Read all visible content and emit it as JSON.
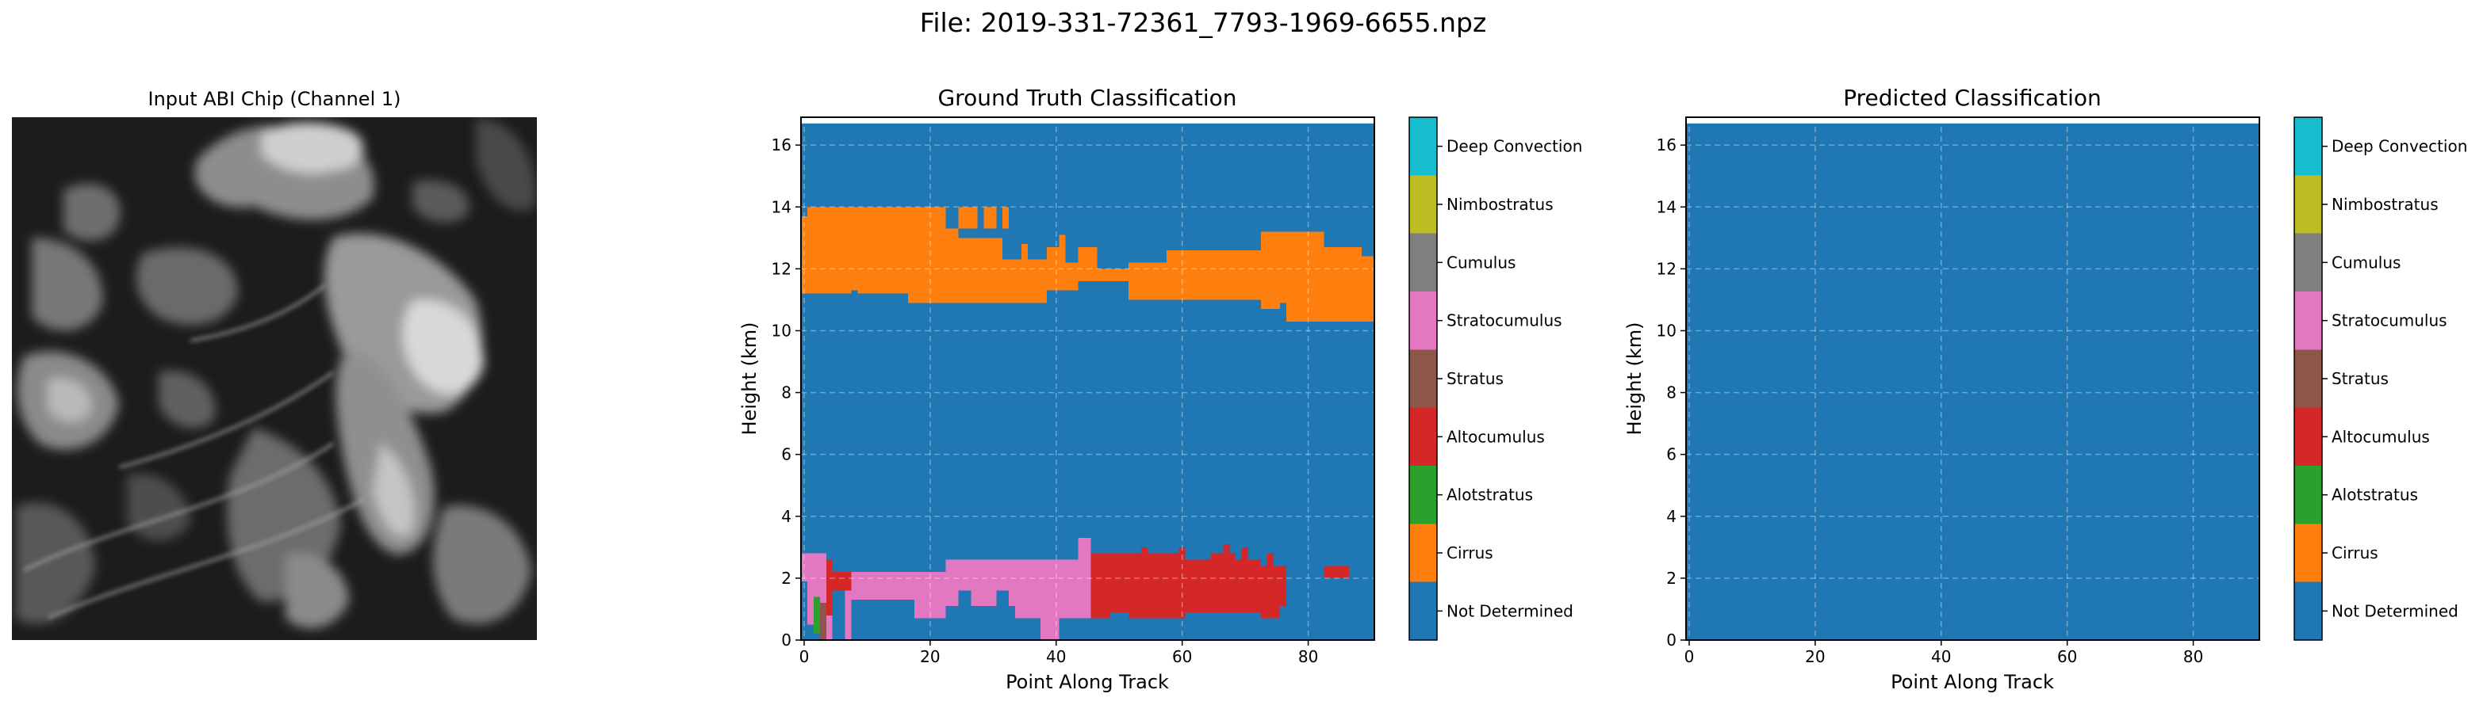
{
  "figure": {
    "suptitle": "File: 2019-331-72361_7793-1969-6655.npz"
  },
  "input_image": {
    "title": "Input ABI Chip (Channel 1)"
  },
  "chart_data": [
    {
      "type": "heatmap",
      "title": "Ground Truth Classification",
      "xlabel": "Point Along Track",
      "ylabel": "Height (km)",
      "xlim": [
        -0.5,
        90.5
      ],
      "ylim": [
        0,
        16.9
      ],
      "xticks": [
        0,
        20,
        40,
        60,
        80
      ],
      "yticks": [
        0,
        2,
        4,
        6,
        8,
        10,
        12,
        14,
        16
      ],
      "grid": true,
      "grid_style": "dashed",
      "background_class": "Not Determined",
      "top_strip": {
        "y_range": [
          16.7,
          16.9
        ],
        "color": "#ffffff"
      },
      "layers": [
        {
          "name": "upper layer",
          "class": "Cirrus",
          "segments": [
            [
              -0.5,
              7.5,
              11.2,
              13.7
            ],
            [
              7.5,
              16.5,
              11.2,
              13.3
            ],
            [
              16.5,
              24.5,
              10.9,
              13.3
            ],
            [
              24.5,
              31.5,
              10.9,
              13.0
            ],
            [
              31.5,
              38.5,
              10.9,
              12.3
            ],
            [
              38.5,
              41.5,
              11.3,
              12.7
            ],
            [
              41.5,
              43.5,
              11.3,
              12.2
            ],
            [
              43.5,
              46.5,
              11.6,
              12.7
            ],
            [
              46.5,
              51.5,
              11.6,
              12.0
            ],
            [
              51.5,
              57.5,
              11.0,
              12.2
            ],
            [
              57.5,
              72.5,
              11.0,
              12.6
            ],
            [
              72.5,
              76.5,
              10.7,
              13.2
            ],
            [
              76.5,
              82.5,
              10.3,
              13.2
            ],
            [
              82.5,
              88.5,
              10.3,
              12.7
            ],
            [
              88.5,
              90.5,
              10.3,
              12.4
            ],
            [
              0.5,
              22.5,
              13.2,
              14.0
            ],
            [
              24.5,
              27.5,
              13.3,
              14.0
            ],
            [
              28.5,
              30.5,
              13.3,
              14.0
            ],
            [
              31.5,
              32.5,
              13.3,
              14.0
            ],
            [
              34.5,
              35.5,
              12.3,
              12.8
            ],
            [
              40.5,
              41.5,
              12.6,
              13.1
            ]
          ],
          "holes": [
            [
              7.5,
              8.5,
              10.9,
              11.3
            ],
            [
              74.5,
              75.5,
              10.3,
              10.7
            ],
            [
              75.5,
              76.5,
              10.5,
              10.9
            ]
          ]
        },
        {
          "name": "lower layer",
          "class": "Stratocumulus",
          "segments": [
            [
              -0.5,
              3.5,
              0.5,
              2.8
            ],
            [
              3.5,
              7.5,
              0.0,
              2.2
            ],
            [
              7.5,
              15.5,
              1.3,
              2.2
            ],
            [
              15.5,
              22.5,
              0.7,
              2.2
            ],
            [
              22.5,
              28.5,
              1.1,
              2.6
            ],
            [
              28.5,
              33.5,
              1.1,
              2.6
            ],
            [
              33.5,
              37.5,
              0.7,
              2.6
            ],
            [
              37.5,
              40.5,
              0.0,
              2.6
            ],
            [
              40.5,
              44.5,
              0.7,
              2.6
            ],
            [
              43.5,
              45.5,
              0.7,
              3.3
            ]
          ],
          "holes": [
            [
              -0.5,
              0.5,
              0.5,
              1.9
            ],
            [
              1.5,
              2.5,
              0.0,
              1.1
            ],
            [
              4.5,
              6.5,
              0.0,
              1.6
            ],
            [
              15.5,
              17.5,
              0.7,
              1.3
            ],
            [
              24.5,
              26.5,
              1.1,
              1.6
            ],
            [
              30.5,
              32.5,
              1.1,
              1.6
            ]
          ]
        },
        {
          "name": "low layer",
          "class": "Altocumulus",
          "segments": [
            [
              45.5,
              48.5,
              0.7,
              2.8
            ],
            [
              48.5,
              51.5,
              0.9,
              2.8
            ],
            [
              51.5,
              55.5,
              0.7,
              2.8
            ],
            [
              55.5,
              60.5,
              0.7,
              2.8
            ],
            [
              60.5,
              64.5,
              0.9,
              2.6
            ],
            [
              64.5,
              68.5,
              0.9,
              2.8
            ],
            [
              68.5,
              72.5,
              0.9,
              2.6
            ],
            [
              72.5,
              75.5,
              0.7,
              2.4
            ],
            [
              75.5,
              76.5,
              1.1,
              2.4
            ],
            [
              3.5,
              4.5,
              0.8,
              2.6
            ],
            [
              4.5,
              7.5,
              1.6,
              2.2
            ],
            [
              82.5,
              86.5,
              2.0,
              2.4
            ],
            [
              53.5,
              54.5,
              2.6,
              3.0
            ],
            [
              59.5,
              60.5,
              2.6,
              3.0
            ],
            [
              66.5,
              67.5,
              2.6,
              3.1
            ],
            [
              69.5,
              70.5,
              2.6,
              3.0
            ],
            [
              73.5,
              74.5,
              2.4,
              2.8
            ]
          ],
          "holes": []
        },
        {
          "name": "low layer detail",
          "class": "Alotstratus",
          "segments": [
            [
              1.5,
              2.5,
              0.2,
              1.4
            ]
          ],
          "holes": []
        },
        {
          "name": "low layer detail",
          "class": "Stratus",
          "segments": [
            [
              2.5,
              3.5,
              0.0,
              1.2
            ]
          ],
          "holes": []
        }
      ]
    },
    {
      "type": "heatmap",
      "title": "Predicted Classification",
      "xlabel": "Point Along Track",
      "ylabel": "Height (km)",
      "xlim": [
        -0.5,
        90.5
      ],
      "ylim": [
        0,
        16.9
      ],
      "xticks": [
        0,
        20,
        40,
        60,
        80
      ],
      "yticks": [
        0,
        2,
        4,
        6,
        8,
        10,
        12,
        14,
        16
      ],
      "grid": true,
      "grid_style": "dashed",
      "background_class": "Not Determined",
      "top_strip": {
        "y_range": [
          16.7,
          16.9
        ],
        "color": "#ffffff"
      },
      "layers": []
    }
  ],
  "colorbar": {
    "classes": [
      {
        "label": "Not Determined",
        "color": "#1f77b4"
      },
      {
        "label": "Cirrus",
        "color": "#ff7f0e"
      },
      {
        "label": "Alotstratus",
        "color": "#2ca02c"
      },
      {
        "label": "Altocumulus",
        "color": "#d62728"
      },
      {
        "label": "Stratus",
        "color": "#8c564b"
      },
      {
        "label": "Stratocumulus",
        "color": "#e377c2"
      },
      {
        "label": "Cumulus",
        "color": "#7f7f7f"
      },
      {
        "label": "Nimbostratus",
        "color": "#bcbd22"
      },
      {
        "label": "Deep Convection",
        "color": "#17becf"
      }
    ]
  }
}
